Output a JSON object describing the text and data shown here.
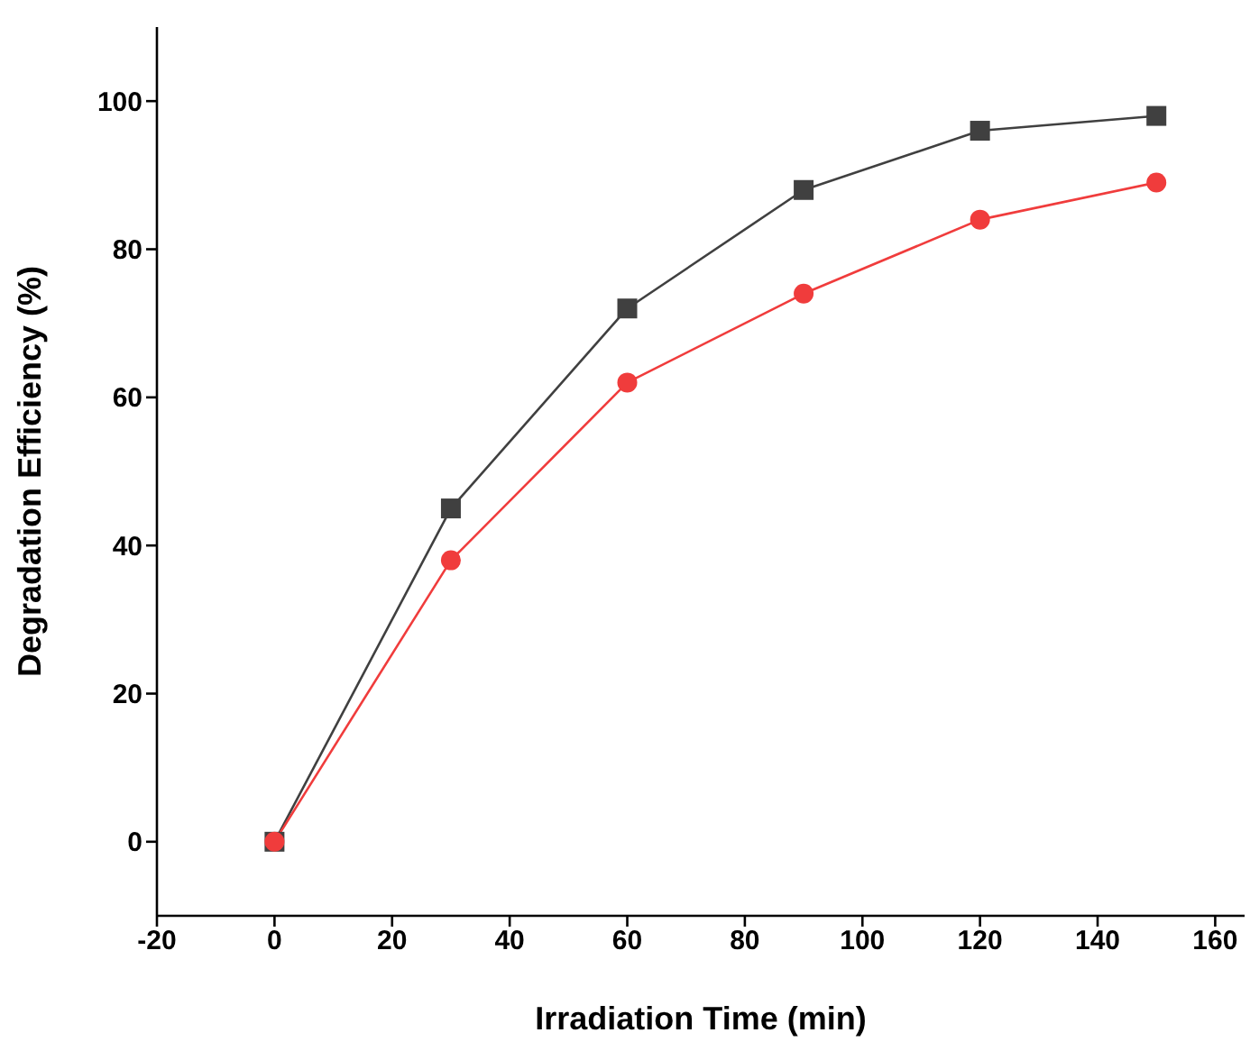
{
  "chart_data": {
    "type": "line",
    "xlabel": "Irradiation Time (min)",
    "ylabel": "Degradation Efficiency (%)",
    "x": [
      0,
      30,
      60,
      90,
      120,
      150
    ],
    "series": [
      {
        "color": "#404040",
        "marker": "square",
        "values": [
          0,
          45,
          72,
          88,
          96,
          98
        ]
      },
      {
        "color": "#f03c3c",
        "marker": "circle",
        "values": [
          0,
          38,
          62,
          74,
          84,
          89
        ]
      }
    ],
    "xlim": [
      -20,
      165
    ],
    "xticks": [
      -20,
      0,
      20,
      40,
      60,
      80,
      100,
      120,
      140,
      160
    ],
    "ylim": [
      -10,
      110
    ],
    "yticks": [
      0,
      20,
      40,
      60,
      80,
      100
    ],
    "grid": false,
    "legend": false,
    "line_style": "solid"
  }
}
